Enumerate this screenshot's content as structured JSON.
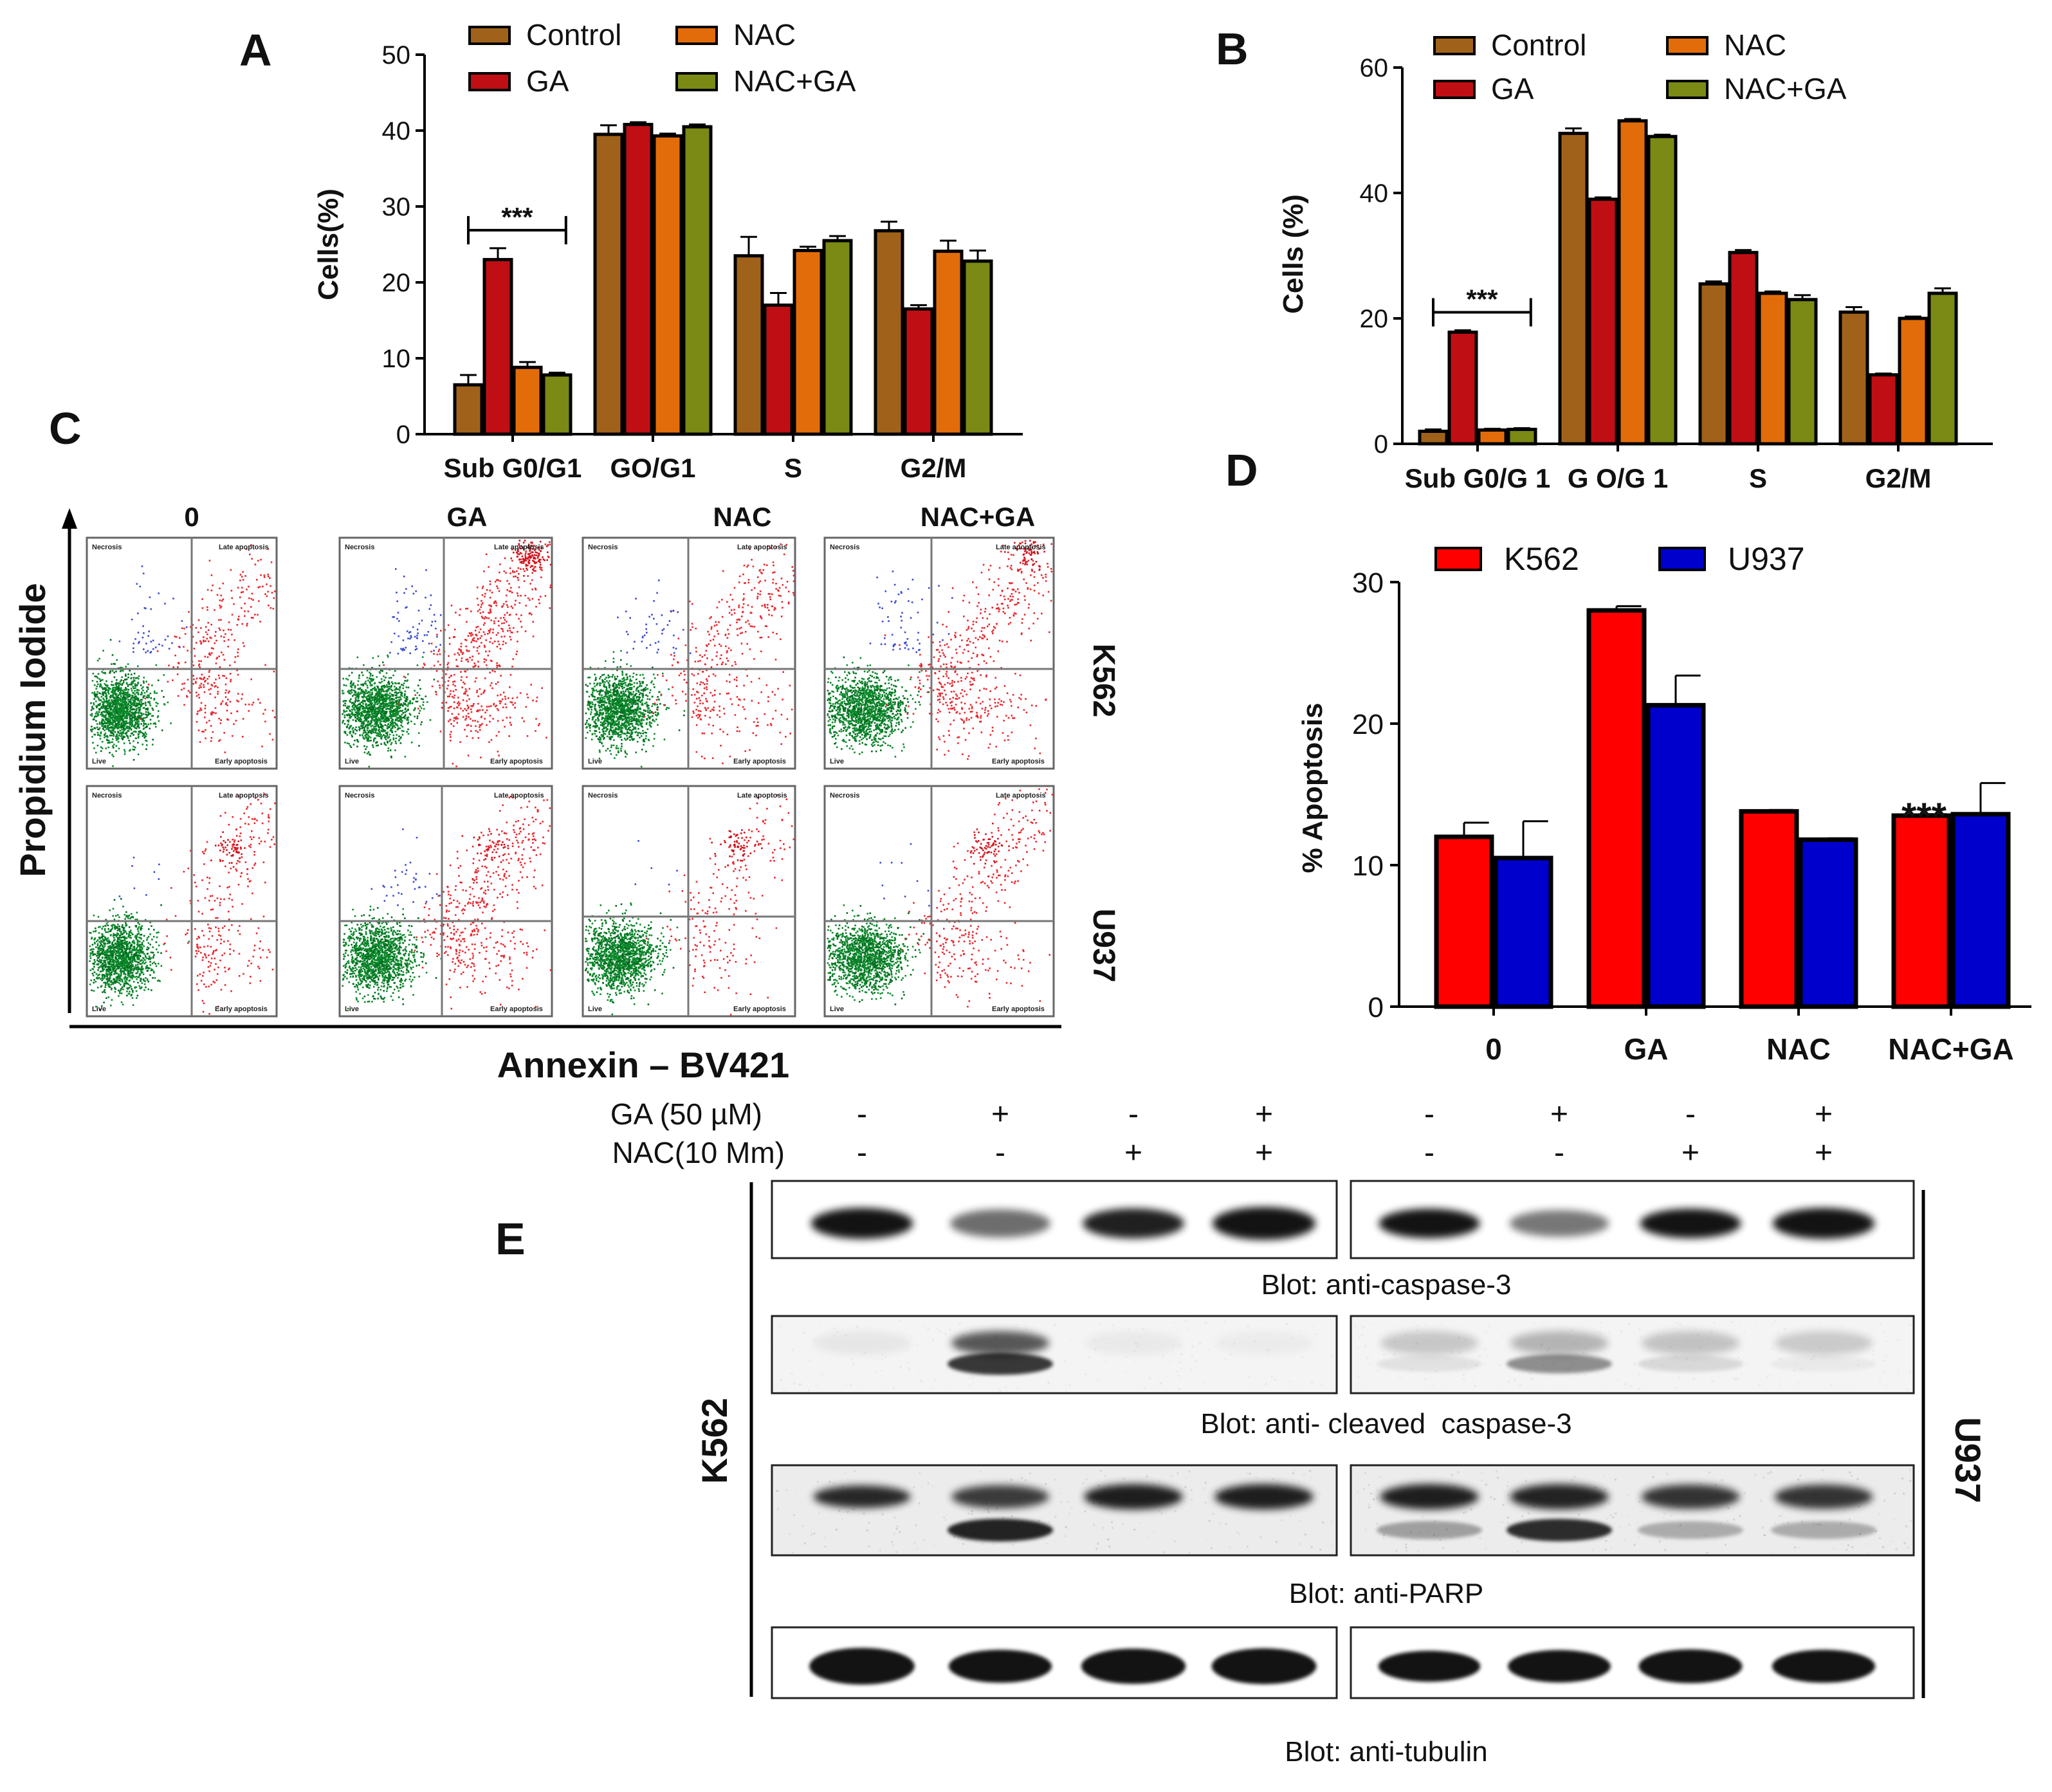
{
  "chart_data": [
    {
      "id": "A",
      "panel_label": "A",
      "type": "bar",
      "title": "",
      "ylabel": "Cells(%)",
      "xlabel": "",
      "ylim": [
        0,
        50
      ],
      "yticks": [
        0,
        10,
        20,
        30,
        40,
        50
      ],
      "categories": [
        "Sub G0/G1",
        "GO/G1",
        "S",
        "G2/M"
      ],
      "series": [
        {
          "name": "Control",
          "color": "#a0621a",
          "values": [
            6.5,
            39.5,
            23.5,
            26.8
          ],
          "errors": [
            1.3,
            1.2,
            2.5,
            1.2
          ]
        },
        {
          "name": "GA",
          "color": "#c00f14",
          "values": [
            23.0,
            40.8,
            17.0,
            16.5
          ],
          "errors": [
            1.5,
            0.3,
            1.6,
            0.5
          ]
        },
        {
          "name": "NAC",
          "color": "#e36c0a",
          "values": [
            8.8,
            39.3,
            24.2,
            24.1
          ],
          "errors": [
            0.7,
            0.3,
            0.5,
            1.4
          ]
        },
        {
          "name": "NAC+GA",
          "color": "#7a8a14",
          "values": [
            7.8,
            40.5,
            25.5,
            22.8
          ],
          "errors": [
            0.3,
            0.3,
            0.6,
            1.4
          ]
        }
      ],
      "annotations": [
        {
          "text": "***",
          "between": [
            "Control",
            "NAC+GA"
          ],
          "category": "Sub G0/G1"
        }
      ]
    },
    {
      "id": "B",
      "panel_label": "B",
      "type": "bar",
      "title": "",
      "ylabel": "Cells (%)",
      "xlabel": "",
      "ylim": [
        0,
        60
      ],
      "yticks": [
        0,
        20,
        40,
        60
      ],
      "categories": [
        "Sub G0/G 1",
        "G O/G 1",
        "S",
        "G2/M"
      ],
      "series": [
        {
          "name": "Control",
          "color": "#a0621a",
          "values": [
            2.0,
            49.5,
            25.5,
            21.0
          ],
          "errors": [
            0.3,
            0.8,
            0.4,
            0.8
          ]
        },
        {
          "name": "GA",
          "color": "#c00f14",
          "values": [
            17.8,
            39.0,
            30.5,
            11.0
          ],
          "errors": [
            0.3,
            0.3,
            0.4,
            0.2
          ]
        },
        {
          "name": "NAC",
          "color": "#e36c0a",
          "values": [
            2.2,
            51.5,
            24.0,
            20.0
          ],
          "errors": [
            0.2,
            0.3,
            0.3,
            0.3
          ]
        },
        {
          "name": "NAC+GA",
          "color": "#7a8a14",
          "values": [
            2.3,
            49.0,
            23.0,
            24.0
          ],
          "errors": [
            0.2,
            0.3,
            0.7,
            0.8
          ]
        }
      ],
      "annotations": [
        {
          "text": "***",
          "between": [
            "Control",
            "NAC+GA"
          ],
          "category": "Sub G0/G 1"
        }
      ]
    },
    {
      "id": "D",
      "panel_label": "D",
      "type": "bar",
      "title": "",
      "ylabel": "% Apoptosis",
      "xlabel": "",
      "ylim": [
        0,
        30
      ],
      "yticks": [
        0,
        10,
        20,
        30
      ],
      "categories": [
        "0",
        "GA",
        "NAC",
        "NAC+GA"
      ],
      "series": [
        {
          "name": "K562",
          "color": "#ff0000",
          "values": [
            12.0,
            28.0,
            13.8,
            13.5
          ],
          "errors": [
            1.0,
            0.3,
            0.1,
            0.1
          ]
        },
        {
          "name": "U937",
          "color": "#0000cc",
          "values": [
            10.5,
            21.3,
            11.8,
            13.6
          ],
          "errors": [
            2.6,
            2.1,
            0.1,
            2.2
          ]
        }
      ],
      "annotations": [
        {
          "text": "***",
          "category": "NAC+GA",
          "series": "K562"
        }
      ]
    }
  ],
  "panels": {
    "c": {
      "label": "C",
      "y_axis_label": "Propidium Iodide",
      "x_axis_label": "Annexin – BV421",
      "columns": [
        "0",
        "GA",
        "NAC",
        "NAC+GA"
      ],
      "rows": [
        "K562",
        "U937"
      ],
      "quadrant_labels": {
        "ul": "Necrosis",
        "ur": "Late apoptosis",
        "ll": "Live",
        "lr": "Early apoptosis"
      },
      "colors": {
        "live": "#0a8a2a",
        "apoptotic": "#e8262c",
        "necrotic": "#3a4bd0"
      }
    },
    "e": {
      "label": "E",
      "conditions": [
        {
          "name": "GA (50 µM)",
          "signs": [
            "-",
            "+",
            "-",
            "+",
            "-",
            "+",
            "-",
            "+"
          ]
        },
        {
          "name": "NAC(10 Mm)",
          "signs": [
            "-",
            "-",
            "+",
            "+",
            "-",
            "-",
            "+",
            "+"
          ]
        }
      ],
      "left_cell": "K562",
      "right_cell": "U937",
      "blots": [
        "Blot: anti-caspase-3",
        "Blot: anti- cleaved  caspase-3",
        "Blot: anti-PARP",
        "Blot: anti-tubulin"
      ]
    }
  }
}
